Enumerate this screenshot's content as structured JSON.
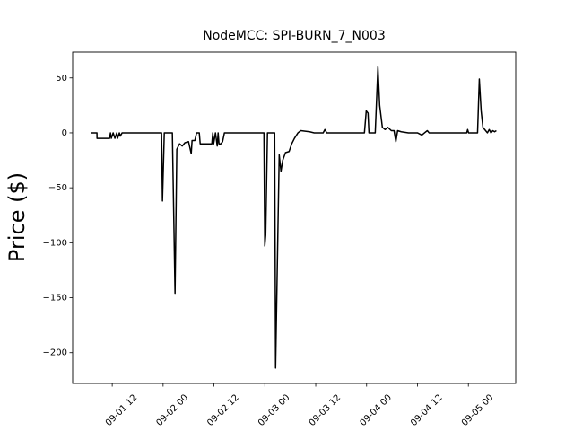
{
  "chart_data": {
    "type": "line",
    "title": "NodeMCC: SPI-BURN_7_N003",
    "y_label": "Price ($)",
    "x": [
      "09-01 07:00",
      "09-01 08:24",
      "09-01 08:25",
      "09-01 11:22",
      "09-01 11:35",
      "09-01 11:47",
      "09-01 12:13",
      "09-01 12:38",
      "09-01 13:04",
      "09-01 13:16",
      "09-01 13:41",
      "09-01 13:54",
      "09-01 14:20",
      "09-01 23:38",
      "09-01 23:51",
      "09-02 00:17",
      "09-02 02:11",
      "09-02 02:49",
      "09-02 03:14",
      "09-02 03:53",
      "09-02 04:31",
      "09-02 05:09",
      "09-02 06:00",
      "09-02 06:38",
      "09-02 06:50",
      "09-02 07:29",
      "09-02 07:54",
      "09-02 08:32",
      "09-02 08:45",
      "09-02 11:30",
      "09-02 11:43",
      "09-02 11:55",
      "09-02 12:21",
      "09-02 12:46",
      "09-02 12:59",
      "09-02 13:11",
      "09-02 13:37",
      "09-02 14:02",
      "09-02 14:28",
      "09-02 23:47",
      "09-02 23:59",
      "09-03 00:12",
      "09-03 00:37",
      "09-03 02:19",
      "09-03 02:32",
      "09-03 03:23",
      "09-03 03:48",
      "09-03 04:13",
      "09-03 04:52",
      "09-03 05:43",
      "09-03 06:20",
      "09-03 06:59",
      "09-03 07:49",
      "09-03 08:28",
      "09-03 10:34",
      "09-03 11:38",
      "09-03 13:45",
      "09-03 14:10",
      "09-03 14:36",
      "09-03 23:29",
      "09-03 23:55",
      "09-04 00:20",
      "09-04 00:33",
      "09-04 02:02",
      "09-04 02:40",
      "09-04 03:05",
      "09-04 03:43",
      "09-04 04:22",
      "09-04 05:00",
      "09-04 05:50",
      "09-04 06:28",
      "09-04 06:54",
      "09-04 07:19",
      "09-04 08:10",
      "09-04 09:52",
      "09-04 11:59",
      "09-04 13:02",
      "09-04 13:40",
      "09-04 14:19",
      "09-04 14:44",
      "09-04 23:37",
      "09-04 23:50",
      "09-05 00:03",
      "09-05 02:10",
      "09-05 02:35",
      "09-05 03:01",
      "09-05 03:26",
      "09-05 04:04",
      "09-05 04:29",
      "09-05 04:55",
      "09-05 05:20",
      "09-05 05:46",
      "09-05 06:11",
      "09-05 06:36"
    ],
    "series": [
      {
        "color": "#000000",
        "values": [
          0,
          0,
          -5,
          -5,
          0,
          -5,
          0,
          -5,
          0,
          -5,
          0,
          -3,
          0,
          0,
          -62,
          0,
          0,
          -146,
          -15,
          -10,
          -12,
          -9,
          -8,
          -19,
          -7,
          -7,
          0,
          0,
          -10,
          -10,
          0,
          -10,
          0,
          -12,
          0,
          -10,
          -10,
          -8,
          0,
          0,
          -103,
          -93,
          0,
          0,
          -214,
          -20,
          -35,
          -25,
          -18,
          -17,
          -10,
          -5,
          0,
          2,
          1,
          0,
          0,
          3,
          0,
          0,
          20,
          18,
          0,
          0,
          60,
          25,
          5,
          3,
          5,
          2,
          2,
          -8,
          2,
          1,
          0,
          0,
          -2,
          0,
          2,
          0,
          0,
          3,
          0,
          0,
          49,
          20,
          5,
          2,
          0,
          3,
          0,
          2,
          1,
          2
        ]
      }
    ],
    "xlim": [
      "09-01 02:40",
      "09-05 11:10"
    ],
    "xticks": [
      "09-01 12",
      "09-02 00",
      "09-02 12",
      "09-03 00",
      "09-03 12",
      "09-04 00",
      "09-04 12",
      "09-05 00"
    ],
    "ylim": [
      -228,
      73.5
    ],
    "yticks": [
      {
        "value": -200,
        "label": "−200"
      },
      {
        "value": -150,
        "label": "−150"
      },
      {
        "value": -100,
        "label": "−100"
      },
      {
        "value": -50,
        "label": "−50"
      },
      0,
      50
    ]
  }
}
